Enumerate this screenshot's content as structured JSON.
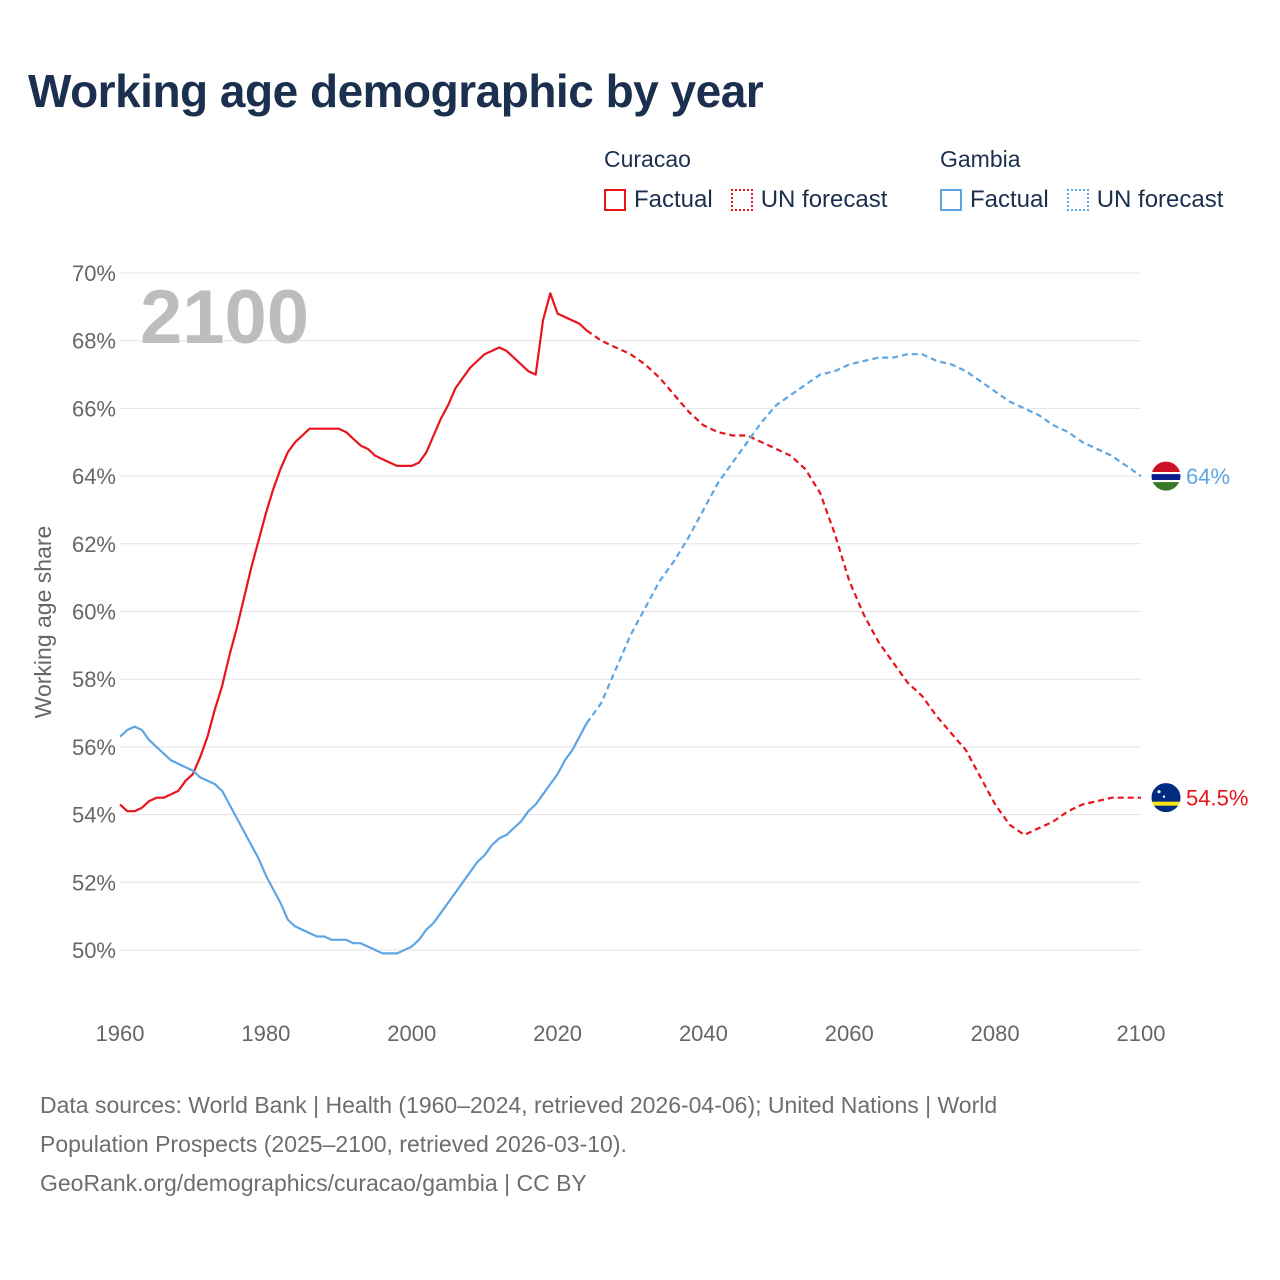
{
  "title": "Working age demographic by year",
  "legend": {
    "groups": [
      {
        "name": "Curacao",
        "color": "#e8141c",
        "items": [
          {
            "label": "Factual",
            "style": "solid"
          },
          {
            "label": "UN forecast",
            "style": "dotted"
          }
        ]
      },
      {
        "name": "Gambia",
        "color": "#5ea6e3",
        "items": [
          {
            "label": "Factual",
            "style": "solid"
          },
          {
            "label": "UN forecast",
            "style": "dotted"
          }
        ]
      }
    ]
  },
  "chart_data": {
    "type": "line",
    "title": "Working age demographic by year",
    "ylabel": "Working age share",
    "xlabel": "",
    "year_overlay": "2100",
    "xlim": [
      1960,
      2100
    ],
    "ylim": [
      50,
      70
    ],
    "x_ticks": [
      "1960",
      "1980",
      "2000",
      "2020",
      "2040",
      "2060",
      "2080",
      "2100"
    ],
    "y_ticks": [
      "50%",
      "52%",
      "54%",
      "56%",
      "58%",
      "60%",
      "62%",
      "64%",
      "66%",
      "68%",
      "70%"
    ],
    "forecast_start_year": 2024,
    "series": [
      {
        "name": "Curacao",
        "color": "#e8141c",
        "end_label": "54.5%",
        "flag": "curacao-flag",
        "points": [
          [
            1960,
            54.3
          ],
          [
            1961,
            54.1
          ],
          [
            1962,
            54.1
          ],
          [
            1963,
            54.2
          ],
          [
            1964,
            54.4
          ],
          [
            1965,
            54.5
          ],
          [
            1966,
            54.5
          ],
          [
            1967,
            54.6
          ],
          [
            1968,
            54.7
          ],
          [
            1969,
            55.0
          ],
          [
            1970,
            55.2
          ],
          [
            1971,
            55.7
          ],
          [
            1972,
            56.3
          ],
          [
            1973,
            57.1
          ],
          [
            1974,
            57.8
          ],
          [
            1975,
            58.7
          ],
          [
            1976,
            59.5
          ],
          [
            1977,
            60.4
          ],
          [
            1978,
            61.3
          ],
          [
            1979,
            62.1
          ],
          [
            1980,
            62.9
          ],
          [
            1981,
            63.6
          ],
          [
            1982,
            64.2
          ],
          [
            1983,
            64.7
          ],
          [
            1984,
            65.0
          ],
          [
            1985,
            65.2
          ],
          [
            1986,
            65.4
          ],
          [
            1987,
            65.4
          ],
          [
            1988,
            65.4
          ],
          [
            1989,
            65.4
          ],
          [
            1990,
            65.4
          ],
          [
            1991,
            65.3
          ],
          [
            1992,
            65.1
          ],
          [
            1993,
            64.9
          ],
          [
            1994,
            64.8
          ],
          [
            1995,
            64.6
          ],
          [
            1996,
            64.5
          ],
          [
            1997,
            64.4
          ],
          [
            1998,
            64.3
          ],
          [
            1999,
            64.3
          ],
          [
            2000,
            64.3
          ],
          [
            2001,
            64.4
          ],
          [
            2002,
            64.7
          ],
          [
            2003,
            65.2
          ],
          [
            2004,
            65.7
          ],
          [
            2005,
            66.1
          ],
          [
            2006,
            66.6
          ],
          [
            2007,
            66.9
          ],
          [
            2008,
            67.2
          ],
          [
            2009,
            67.4
          ],
          [
            2010,
            67.6
          ],
          [
            2011,
            67.7
          ],
          [
            2012,
            67.8
          ],
          [
            2013,
            67.7
          ],
          [
            2014,
            67.5
          ],
          [
            2015,
            67.3
          ],
          [
            2016,
            67.1
          ],
          [
            2017,
            67.0
          ],
          [
            2018,
            68.6
          ],
          [
            2019,
            69.4
          ],
          [
            2020,
            68.8
          ],
          [
            2021,
            68.7
          ],
          [
            2022,
            68.6
          ],
          [
            2023,
            68.5
          ],
          [
            2024,
            68.3
          ],
          [
            2026,
            68.0
          ],
          [
            2028,
            67.8
          ],
          [
            2030,
            67.6
          ],
          [
            2032,
            67.3
          ],
          [
            2034,
            66.9
          ],
          [
            2036,
            66.4
          ],
          [
            2038,
            65.9
          ],
          [
            2040,
            65.5
          ],
          [
            2042,
            65.3
          ],
          [
            2044,
            65.2
          ],
          [
            2046,
            65.2
          ],
          [
            2048,
            65.0
          ],
          [
            2050,
            64.8
          ],
          [
            2052,
            64.6
          ],
          [
            2054,
            64.2
          ],
          [
            2056,
            63.5
          ],
          [
            2058,
            62.3
          ],
          [
            2060,
            60.9
          ],
          [
            2062,
            59.9
          ],
          [
            2064,
            59.1
          ],
          [
            2066,
            58.5
          ],
          [
            2068,
            57.9
          ],
          [
            2070,
            57.5
          ],
          [
            2072,
            56.9
          ],
          [
            2074,
            56.4
          ],
          [
            2076,
            55.9
          ],
          [
            2078,
            55.1
          ],
          [
            2080,
            54.3
          ],
          [
            2082,
            53.7
          ],
          [
            2084,
            53.4
          ],
          [
            2086,
            53.6
          ],
          [
            2088,
            53.8
          ],
          [
            2090,
            54.1
          ],
          [
            2092,
            54.3
          ],
          [
            2094,
            54.4
          ],
          [
            2096,
            54.5
          ],
          [
            2098,
            54.5
          ],
          [
            2100,
            54.5
          ]
        ]
      },
      {
        "name": "Gambia",
        "color": "#5ea6e3",
        "end_label": "64%",
        "flag": "gambia-flag",
        "points": [
          [
            1960,
            56.3
          ],
          [
            1961,
            56.5
          ],
          [
            1962,
            56.6
          ],
          [
            1963,
            56.5
          ],
          [
            1964,
            56.2
          ],
          [
            1965,
            56.0
          ],
          [
            1966,
            55.8
          ],
          [
            1967,
            55.6
          ],
          [
            1968,
            55.5
          ],
          [
            1969,
            55.4
          ],
          [
            1970,
            55.3
          ],
          [
            1971,
            55.1
          ],
          [
            1972,
            55.0
          ],
          [
            1973,
            54.9
          ],
          [
            1974,
            54.7
          ],
          [
            1975,
            54.3
          ],
          [
            1976,
            53.9
          ],
          [
            1977,
            53.5
          ],
          [
            1978,
            53.1
          ],
          [
            1979,
            52.7
          ],
          [
            1980,
            52.2
          ],
          [
            1981,
            51.8
          ],
          [
            1982,
            51.4
          ],
          [
            1983,
            50.9
          ],
          [
            1984,
            50.7
          ],
          [
            1985,
            50.6
          ],
          [
            1986,
            50.5
          ],
          [
            1987,
            50.4
          ],
          [
            1988,
            50.4
          ],
          [
            1989,
            50.3
          ],
          [
            1990,
            50.3
          ],
          [
            1991,
            50.3
          ],
          [
            1992,
            50.2
          ],
          [
            1993,
            50.2
          ],
          [
            1994,
            50.1
          ],
          [
            1995,
            50.0
          ],
          [
            1996,
            49.9
          ],
          [
            1997,
            49.9
          ],
          [
            1998,
            49.9
          ],
          [
            1999,
            50.0
          ],
          [
            2000,
            50.1
          ],
          [
            2001,
            50.3
          ],
          [
            2002,
            50.6
          ],
          [
            2003,
            50.8
          ],
          [
            2004,
            51.1
          ],
          [
            2005,
            51.4
          ],
          [
            2006,
            51.7
          ],
          [
            2007,
            52.0
          ],
          [
            2008,
            52.3
          ],
          [
            2009,
            52.6
          ],
          [
            2010,
            52.8
          ],
          [
            2011,
            53.1
          ],
          [
            2012,
            53.3
          ],
          [
            2013,
            53.4
          ],
          [
            2014,
            53.6
          ],
          [
            2015,
            53.8
          ],
          [
            2016,
            54.1
          ],
          [
            2017,
            54.3
          ],
          [
            2018,
            54.6
          ],
          [
            2019,
            54.9
          ],
          [
            2020,
            55.2
          ],
          [
            2021,
            55.6
          ],
          [
            2022,
            55.9
          ],
          [
            2023,
            56.3
          ],
          [
            2024,
            56.7
          ],
          [
            2026,
            57.3
          ],
          [
            2028,
            58.3
          ],
          [
            2030,
            59.3
          ],
          [
            2032,
            60.1
          ],
          [
            2034,
            60.9
          ],
          [
            2036,
            61.5
          ],
          [
            2038,
            62.2
          ],
          [
            2040,
            63.0
          ],
          [
            2042,
            63.8
          ],
          [
            2044,
            64.4
          ],
          [
            2046,
            65.0
          ],
          [
            2048,
            65.6
          ],
          [
            2050,
            66.1
          ],
          [
            2052,
            66.4
          ],
          [
            2054,
            66.7
          ],
          [
            2056,
            67.0
          ],
          [
            2058,
            67.1
          ],
          [
            2060,
            67.3
          ],
          [
            2062,
            67.4
          ],
          [
            2064,
            67.5
          ],
          [
            2066,
            67.5
          ],
          [
            2068,
            67.6
          ],
          [
            2070,
            67.6
          ],
          [
            2072,
            67.4
          ],
          [
            2074,
            67.3
          ],
          [
            2076,
            67.1
          ],
          [
            2078,
            66.8
          ],
          [
            2080,
            66.5
          ],
          [
            2082,
            66.2
          ],
          [
            2084,
            66.0
          ],
          [
            2086,
            65.8
          ],
          [
            2088,
            65.5
          ],
          [
            2090,
            65.3
          ],
          [
            2092,
            65.0
          ],
          [
            2094,
            64.8
          ],
          [
            2096,
            64.6
          ],
          [
            2098,
            64.3
          ],
          [
            2100,
            64.0
          ]
        ]
      }
    ]
  },
  "source": {
    "line1": "Data sources: World Bank | Health (1960–2024, retrieved 2026-04-06); United Nations | World",
    "line2": "Population Prospects (2025–2100, retrieved 2026-03-10).",
    "line3": "GeoRank.org/demographics/curacao/gambia | CC BY"
  }
}
